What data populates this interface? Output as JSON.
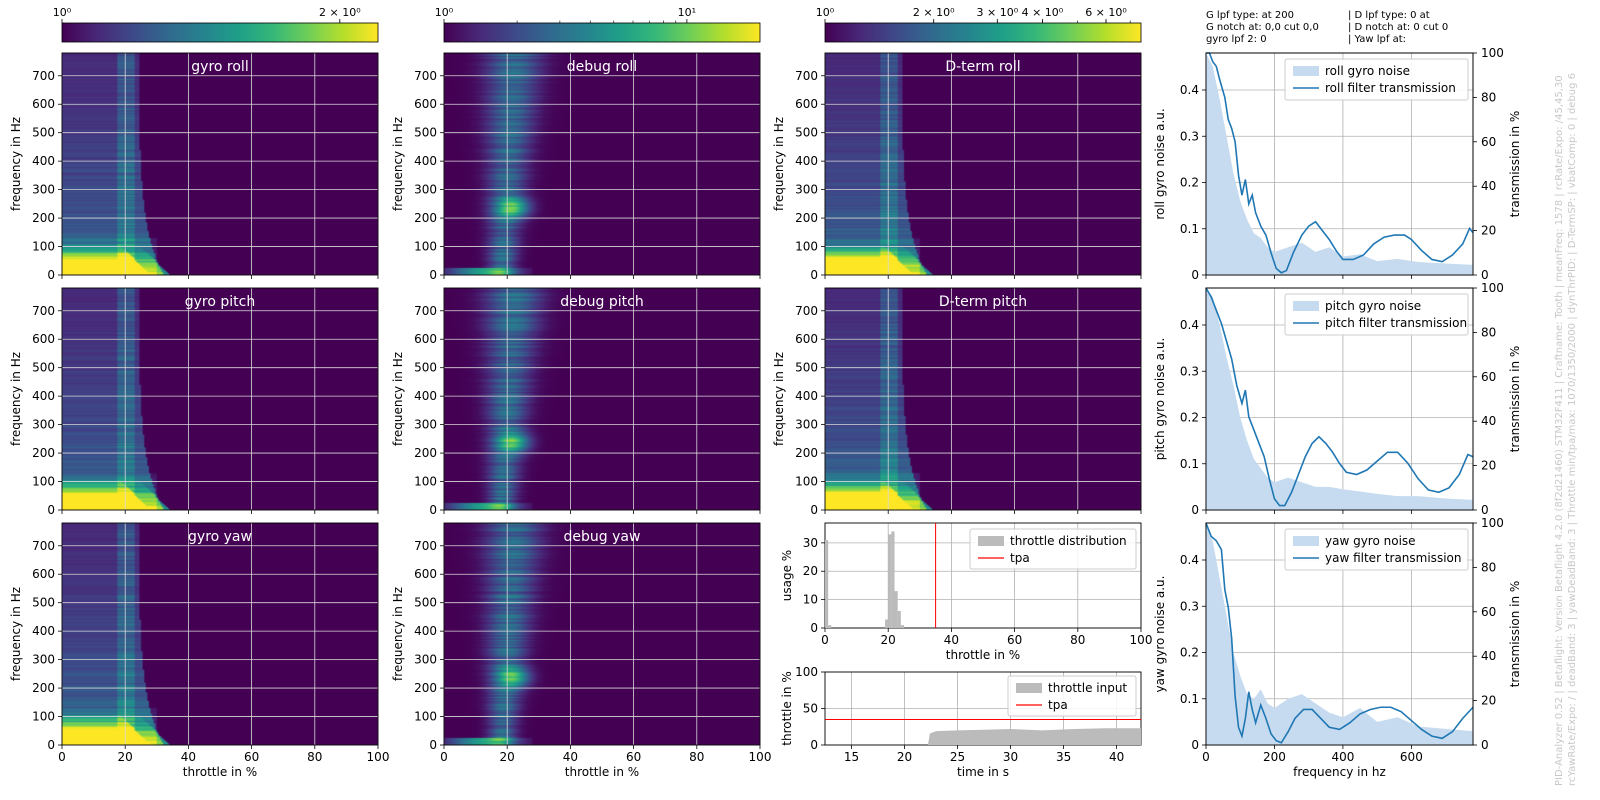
{
  "colors": {
    "viridis": [
      "#440154",
      "#482878",
      "#3e4989",
      "#31688e",
      "#26828e",
      "#1f9e89",
      "#35b779",
      "#6ece58",
      "#b5de2b",
      "#fde725"
    ],
    "noise_fill": "#c6dbef",
    "filter_line": "#1f77b4",
    "tpa": "#ff0000",
    "hist": "#bbbbbb",
    "grid": "#b0b0b0"
  },
  "info": {
    "left": [
      "G lpf type:  at 200",
      "G notch at: 0,0 cut 0,0",
      "gyro lpf 2: 0"
    ],
    "right": [
      "| D lpf type: 0 at",
      "| D notch at: 0 cut 0",
      "| Yaw lpf at:"
    ]
  },
  "side_text": [
    "PID-Analyzer 0.52 | Betaflight: Version Betaflight 4.2.0 (8f2d21460) STM32F411 | Craftname: Tooth | meanFreq: 1578 | rcRate/Expo: /45,45,30",
    "rcYawRate/Expo: / | deadBand: 3 | yawDeadBand: 3 | Throttle min/tpa/max: 1070/1350/2000 | dynThrPID: | D-TermSP: | vbatComp: 0 | debug 6"
  ],
  "colorbars": [
    {
      "min": 1,
      "max": 2.2,
      "ticks": [
        {
          "v": 1,
          "label": "10⁰"
        },
        {
          "v": 2,
          "label": "2 × 10⁰"
        }
      ]
    },
    {
      "min": 1,
      "max": 20,
      "ticks": [
        {
          "v": 1,
          "label": "10⁰"
        },
        {
          "v": 10,
          "label": "10¹"
        }
      ]
    },
    {
      "min": 1,
      "max": 7.5,
      "ticks": [
        {
          "v": 1,
          "label": "10⁰"
        },
        {
          "v": 2,
          "label": "2 × 10⁰"
        },
        {
          "v": 3,
          "label": "3 × 10⁰"
        },
        {
          "v": 4,
          "label": "4 × 10⁰"
        },
        {
          "v": 6,
          "label": "6 × 10⁰"
        }
      ]
    }
  ],
  "chart_data": [
    {
      "type": "heatmap",
      "title": "gyro roll",
      "xlabel": "",
      "ylabel": "frequency in Hz",
      "xlim": [
        0,
        100
      ],
      "ylim": [
        0,
        780
      ],
      "xticks": [
        0,
        20,
        40,
        60,
        80,
        100
      ],
      "yticks": [
        0,
        100,
        200,
        300,
        400,
        500,
        600,
        700
      ],
      "profile": "gyro"
    },
    {
      "type": "heatmap",
      "title": "debug roll",
      "xlabel": "",
      "ylabel": "frequency in Hz",
      "xlim": [
        0,
        100
      ],
      "ylim": [
        0,
        780
      ],
      "xticks": [
        0,
        20,
        40,
        60,
        80,
        100
      ],
      "yticks": [
        0,
        100,
        200,
        300,
        400,
        500,
        600,
        700
      ],
      "profile": "debug"
    },
    {
      "type": "heatmap",
      "title": "D-term roll",
      "xlabel": "",
      "ylabel": "frequency in Hz",
      "xlim": [
        0,
        100
      ],
      "ylim": [
        0,
        780
      ],
      "xticks": [
        0,
        20,
        40,
        60,
        80,
        100
      ],
      "yticks": [
        0,
        100,
        200,
        300,
        400,
        500,
        600,
        700
      ],
      "profile": "gyro"
    },
    {
      "type": "heatmap",
      "title": "gyro pitch",
      "xlabel": "",
      "ylabel": "frequency in Hz",
      "xlim": [
        0,
        100
      ],
      "ylim": [
        0,
        780
      ],
      "xticks": [
        0,
        20,
        40,
        60,
        80,
        100
      ],
      "yticks": [
        0,
        100,
        200,
        300,
        400,
        500,
        600,
        700
      ],
      "profile": "gyro"
    },
    {
      "type": "heatmap",
      "title": "debug pitch",
      "xlabel": "",
      "ylabel": "frequency in Hz",
      "xlim": [
        0,
        100
      ],
      "ylim": [
        0,
        780
      ],
      "xticks": [
        0,
        20,
        40,
        60,
        80,
        100
      ],
      "yticks": [
        0,
        100,
        200,
        300,
        400,
        500,
        600,
        700
      ],
      "profile": "debug"
    },
    {
      "type": "heatmap",
      "title": "D-term pitch",
      "xlabel": "",
      "ylabel": "frequency in Hz",
      "xlim": [
        0,
        100
      ],
      "ylim": [
        0,
        780
      ],
      "xticks": [
        0,
        20,
        40,
        60,
        80,
        100
      ],
      "yticks": [
        0,
        100,
        200,
        300,
        400,
        500,
        600,
        700
      ],
      "profile": "gyro"
    },
    {
      "type": "heatmap",
      "title": "gyro yaw",
      "xlabel": "throttle in %",
      "ylabel": "frequency in Hz",
      "xlim": [
        0,
        100
      ],
      "ylim": [
        0,
        780
      ],
      "xticks": [
        0,
        20,
        40,
        60,
        80,
        100
      ],
      "yticks": [
        0,
        100,
        200,
        300,
        400,
        500,
        600,
        700
      ],
      "profile": "gyro"
    },
    {
      "type": "heatmap",
      "title": "debug yaw",
      "xlabel": "throttle in %",
      "ylabel": "frequency in Hz",
      "xlim": [
        0,
        100
      ],
      "ylim": [
        0,
        780
      ],
      "xticks": [
        0,
        20,
        40,
        60,
        80,
        100
      ],
      "yticks": [
        0,
        100,
        200,
        300,
        400,
        500,
        600,
        700
      ],
      "profile": "debug"
    },
    {
      "type": "bar",
      "title": "",
      "xlabel": "throttle in %",
      "ylabel": "usage %",
      "xlim": [
        0,
        100
      ],
      "ylim": [
        0,
        37
      ],
      "xticks": [
        0,
        20,
        40,
        60,
        80,
        100
      ],
      "yticks": [
        0,
        10,
        20,
        30
      ],
      "tpa": 35,
      "legend": [
        "throttle distribution",
        "tpa"
      ],
      "bins": [
        {
          "x": 0,
          "v": 31
        },
        {
          "x": 1,
          "v": 1
        },
        {
          "x": 19,
          "v": 3
        },
        {
          "x": 20,
          "v": 33
        },
        {
          "x": 21,
          "v": 34
        },
        {
          "x": 22,
          "v": 13
        },
        {
          "x": 23,
          "v": 6
        },
        {
          "x": 24,
          "v": 1
        }
      ]
    },
    {
      "type": "area",
      "title": "",
      "xlabel": "time in s",
      "ylabel": "throttle in %",
      "xlim": [
        12.5,
        42.3
      ],
      "ylim": [
        0,
        100
      ],
      "xticks": [
        15,
        20,
        25,
        30,
        35,
        40
      ],
      "yticks": [
        0,
        50,
        100
      ],
      "tpa": 35,
      "legend": [
        "throttle input",
        "tpa"
      ],
      "points": [
        [
          12.5,
          0
        ],
        [
          22.2,
          0
        ],
        [
          22.4,
          16
        ],
        [
          23,
          19
        ],
        [
          25,
          20
        ],
        [
          28,
          21
        ],
        [
          30,
          22
        ],
        [
          33,
          20
        ],
        [
          36,
          22
        ],
        [
          39,
          23
        ],
        [
          42.3,
          23
        ]
      ]
    },
    {
      "type": "line",
      "title": "",
      "xlabel": "",
      "ylabel": "roll gyro noise a.u.",
      "y2label": "transmission in %",
      "xlim": [
        0,
        780
      ],
      "ylim": [
        0,
        0.48
      ],
      "y2lim": [
        0,
        100
      ],
      "xticks": [
        0,
        200,
        400,
        600
      ],
      "yticks": [
        0,
        0.1,
        0.2,
        0.3,
        0.4
      ],
      "y2ticks": [
        0,
        20,
        40,
        60,
        80,
        100
      ],
      "series": [
        {
          "name": "roll gyro noise",
          "type": "area"
        },
        {
          "name": "roll filter transmission",
          "type": "line"
        }
      ],
      "noise": [
        [
          0,
          0.48
        ],
        [
          20,
          0.45
        ],
        [
          40,
          0.38
        ],
        [
          60,
          0.3
        ],
        [
          80,
          0.22
        ],
        [
          100,
          0.16
        ],
        [
          120,
          0.12
        ],
        [
          140,
          0.09
        ],
        [
          160,
          0.08
        ],
        [
          180,
          0.06
        ],
        [
          200,
          0.05
        ],
        [
          240,
          0.06
        ],
        [
          280,
          0.07
        ],
        [
          320,
          0.05
        ],
        [
          360,
          0.06
        ],
        [
          400,
          0.04
        ],
        [
          450,
          0.045
        ],
        [
          500,
          0.03
        ],
        [
          560,
          0.035
        ],
        [
          620,
          0.028
        ],
        [
          700,
          0.025
        ],
        [
          780,
          0.022
        ]
      ],
      "transmission": [
        [
          0,
          100
        ],
        [
          10,
          100
        ],
        [
          20,
          96
        ],
        [
          30,
          94
        ],
        [
          40,
          88
        ],
        [
          55,
          80
        ],
        [
          65,
          70
        ],
        [
          75,
          66
        ],
        [
          85,
          60
        ],
        [
          95,
          45
        ],
        [
          105,
          36
        ],
        [
          115,
          43
        ],
        [
          125,
          32
        ],
        [
          135,
          36
        ],
        [
          145,
          28
        ],
        [
          160,
          22
        ],
        [
          175,
          18
        ],
        [
          190,
          10
        ],
        [
          205,
          3
        ],
        [
          220,
          1
        ],
        [
          235,
          2
        ],
        [
          255,
          10
        ],
        [
          280,
          18
        ],
        [
          300,
          22
        ],
        [
          320,
          24
        ],
        [
          340,
          20
        ],
        [
          360,
          16
        ],
        [
          380,
          11
        ],
        [
          400,
          7
        ],
        [
          430,
          7
        ],
        [
          460,
          9
        ],
        [
          490,
          14
        ],
        [
          520,
          17
        ],
        [
          550,
          18
        ],
        [
          580,
          18
        ],
        [
          600,
          16
        ],
        [
          630,
          11
        ],
        [
          660,
          7
        ],
        [
          690,
          6
        ],
        [
          720,
          9
        ],
        [
          750,
          14
        ],
        [
          770,
          21
        ],
        [
          780,
          19
        ]
      ]
    },
    {
      "type": "line",
      "title": "",
      "xlabel": "",
      "ylabel": "pitch gyro noise a.u.",
      "y2label": "transmission in %",
      "xlim": [
        0,
        780
      ],
      "ylim": [
        0,
        0.48
      ],
      "y2lim": [
        0,
        100
      ],
      "xticks": [
        0,
        200,
        400,
        600
      ],
      "yticks": [
        0,
        0.1,
        0.2,
        0.3,
        0.4
      ],
      "y2ticks": [
        0,
        20,
        40,
        60,
        80,
        100
      ],
      "series": [
        {
          "name": "pitch gyro noise",
          "type": "area"
        },
        {
          "name": "pitch filter transmission",
          "type": "line"
        }
      ],
      "noise": [
        [
          0,
          0.48
        ],
        [
          20,
          0.46
        ],
        [
          40,
          0.4
        ],
        [
          60,
          0.33
        ],
        [
          80,
          0.27
        ],
        [
          100,
          0.2
        ],
        [
          120,
          0.15
        ],
        [
          140,
          0.11
        ],
        [
          160,
          0.09
        ],
        [
          180,
          0.07
        ],
        [
          200,
          0.06
        ],
        [
          240,
          0.07
        ],
        [
          280,
          0.06
        ],
        [
          320,
          0.05
        ],
        [
          360,
          0.05
        ],
        [
          400,
          0.045
        ],
        [
          450,
          0.04
        ],
        [
          500,
          0.035
        ],
        [
          560,
          0.03
        ],
        [
          620,
          0.03
        ],
        [
          700,
          0.025
        ],
        [
          780,
          0.022
        ]
      ],
      "transmission": [
        [
          0,
          100
        ],
        [
          15,
          96
        ],
        [
          30,
          90
        ],
        [
          45,
          84
        ],
        [
          60,
          76
        ],
        [
          75,
          68
        ],
        [
          90,
          56
        ],
        [
          105,
          48
        ],
        [
          115,
          54
        ],
        [
          125,
          42
        ],
        [
          140,
          36
        ],
        [
          155,
          30
        ],
        [
          170,
          24
        ],
        [
          185,
          14
        ],
        [
          200,
          5
        ],
        [
          215,
          2
        ],
        [
          230,
          2
        ],
        [
          250,
          8
        ],
        [
          270,
          16
        ],
        [
          290,
          24
        ],
        [
          310,
          30
        ],
        [
          330,
          33
        ],
        [
          350,
          30
        ],
        [
          370,
          26
        ],
        [
          390,
          21
        ],
        [
          410,
          17
        ],
        [
          440,
          16
        ],
        [
          470,
          18
        ],
        [
          500,
          22
        ],
        [
          530,
          26
        ],
        [
          560,
          26
        ],
        [
          590,
          21
        ],
        [
          620,
          14
        ],
        [
          650,
          9
        ],
        [
          680,
          8
        ],
        [
          710,
          10
        ],
        [
          740,
          16
        ],
        [
          765,
          25
        ],
        [
          780,
          24
        ]
      ]
    },
    {
      "type": "line",
      "title": "",
      "xlabel": "frequency in hz",
      "ylabel": "yaw gyro noise a.u.",
      "y2label": "transmission in %",
      "xlim": [
        0,
        780
      ],
      "ylim": [
        0,
        0.48
      ],
      "y2lim": [
        0,
        100
      ],
      "xticks": [
        0,
        200,
        400,
        600
      ],
      "yticks": [
        0,
        0.1,
        0.2,
        0.3,
        0.4
      ],
      "y2ticks": [
        0,
        20,
        40,
        60,
        80,
        100
      ],
      "series": [
        {
          "name": "yaw gyro noise",
          "type": "area"
        },
        {
          "name": "yaw filter transmission",
          "type": "line"
        }
      ],
      "noise": [
        [
          0,
          0.48
        ],
        [
          20,
          0.44
        ],
        [
          40,
          0.36
        ],
        [
          60,
          0.28
        ],
        [
          80,
          0.2
        ],
        [
          100,
          0.15
        ],
        [
          120,
          0.11
        ],
        [
          140,
          0.1
        ],
        [
          160,
          0.12
        ],
        [
          180,
          0.09
        ],
        [
          200,
          0.08
        ],
        [
          240,
          0.1
        ],
        [
          280,
          0.11
        ],
        [
          320,
          0.09
        ],
        [
          360,
          0.07
        ],
        [
          400,
          0.06
        ],
        [
          450,
          0.08
        ],
        [
          500,
          0.05
        ],
        [
          560,
          0.06
        ],
        [
          620,
          0.04
        ],
        [
          700,
          0.035
        ],
        [
          780,
          0.03
        ]
      ],
      "transmission": [
        [
          0,
          100
        ],
        [
          15,
          94
        ],
        [
          30,
          92
        ],
        [
          45,
          88
        ],
        [
          55,
          70
        ],
        [
          65,
          62
        ],
        [
          75,
          48
        ],
        [
          85,
          22
        ],
        [
          95,
          8
        ],
        [
          105,
          4
        ],
        [
          115,
          12
        ],
        [
          125,
          24
        ],
        [
          135,
          16
        ],
        [
          145,
          10
        ],
        [
          160,
          18
        ],
        [
          175,
          12
        ],
        [
          190,
          5
        ],
        [
          205,
          2
        ],
        [
          220,
          1
        ],
        [
          240,
          6
        ],
        [
          260,
          12
        ],
        [
          285,
          16
        ],
        [
          310,
          16
        ],
        [
          335,
          12
        ],
        [
          360,
          8
        ],
        [
          390,
          7
        ],
        [
          420,
          10
        ],
        [
          450,
          14
        ],
        [
          480,
          16
        ],
        [
          510,
          17
        ],
        [
          540,
          17
        ],
        [
          570,
          15
        ],
        [
          600,
          11
        ],
        [
          630,
          7
        ],
        [
          660,
          4
        ],
        [
          690,
          3
        ],
        [
          720,
          6
        ],
        [
          750,
          12
        ],
        [
          780,
          17
        ]
      ]
    }
  ]
}
